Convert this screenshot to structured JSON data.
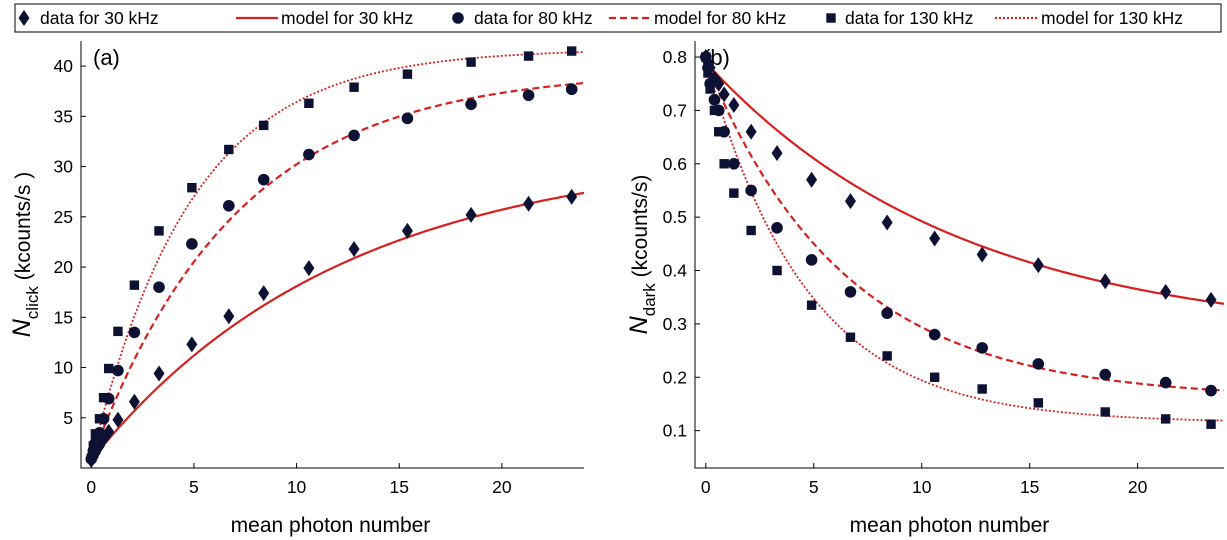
{
  "legend": [
    {
      "label": "data for 30 kHz",
      "kind": "marker",
      "marker": "diamond"
    },
    {
      "label": "model for 30 kHz",
      "kind": "line",
      "dash": "solid"
    },
    {
      "label": "data for 80 kHz",
      "kind": "marker",
      "marker": "circle"
    },
    {
      "label": "model for 80 kHz",
      "kind": "line",
      "dash": "dashed"
    },
    {
      "label": "data for 130 kHz",
      "kind": "marker",
      "marker": "square"
    },
    {
      "label": "model for 130 kHz",
      "kind": "line",
      "dash": "dotted"
    }
  ],
  "colors": {
    "marker": "#0d1133",
    "model": "#d62020",
    "axis": "#000000"
  },
  "chart_data": [
    {
      "type": "scatter",
      "panel_label": "(a)",
      "xlabel": "mean photon number",
      "ylabel_main": "N",
      "ylabel_sub": "click",
      "ylabel_unit": "(kcounts/s )",
      "xlim": [
        -0.5,
        24
      ],
      "ylim": [
        0,
        42.5
      ],
      "xticks": [
        0,
        5,
        10,
        15,
        20
      ],
      "yticks": [
        5,
        10,
        15,
        20,
        25,
        30,
        35,
        40
      ],
      "series": [
        {
          "name": "data for 30 kHz",
          "marker": "diamond",
          "x": [
            0,
            0.1,
            0.2,
            0.4,
            0.6,
            0.85,
            1.3,
            2.1,
            3.3,
            4.9,
            6.7,
            8.4,
            10.6,
            12.8,
            15.4,
            18.5,
            21.3,
            23.4
          ],
          "y": [
            0.8,
            1.1,
            1.5,
            2.2,
            2.9,
            3.6,
            4.8,
            6.6,
            9.4,
            12.3,
            15.1,
            17.4,
            19.9,
            21.8,
            23.6,
            25.2,
            26.3,
            27.0
          ]
        },
        {
          "name": "model for 30 kHz",
          "line": "solid",
          "model": {
            "a": 0.8,
            "b": 30.9,
            "k": 0.082
          }
        },
        {
          "name": "data for 80 kHz",
          "marker": "circle",
          "x": [
            0,
            0.1,
            0.2,
            0.4,
            0.6,
            0.85,
            1.3,
            2.1,
            3.3,
            4.9,
            6.7,
            8.4,
            10.6,
            12.8,
            15.4,
            18.5,
            21.3,
            23.4
          ],
          "y": [
            0.9,
            1.7,
            2.5,
            3.5,
            4.9,
            6.9,
            9.7,
            13.5,
            18.0,
            22.3,
            26.1,
            28.7,
            31.2,
            33.1,
            34.8,
            36.2,
            37.1,
            37.7
          ]
        },
        {
          "name": "model for 80 kHz",
          "line": "dashed",
          "model": {
            "a": 0.8,
            "b": 38.8,
            "k": 0.142
          }
        },
        {
          "name": "data for 130 kHz",
          "marker": "square",
          "x": [
            0,
            0.1,
            0.2,
            0.4,
            0.6,
            0.85,
            1.3,
            2.1,
            3.3,
            4.9,
            6.7,
            8.4,
            10.6,
            12.8,
            15.4,
            18.5,
            21.3,
            23.4
          ],
          "y": [
            1.0,
            2.2,
            3.4,
            4.9,
            7.0,
            9.9,
            13.6,
            18.2,
            23.6,
            27.9,
            31.7,
            34.1,
            36.3,
            37.9,
            39.2,
            40.4,
            41.0,
            41.5
          ]
        },
        {
          "name": "model for 130 kHz",
          "line": "dotted",
          "model": {
            "a": 0.8,
            "b": 40.9,
            "k": 0.205
          }
        }
      ]
    },
    {
      "type": "scatter",
      "panel_label": "(b)",
      "xlabel": "mean photon number",
      "ylabel_main": "N",
      "ylabel_sub": "dark",
      "ylabel_unit": "(kcounts/s)",
      "xlim": [
        -0.5,
        24
      ],
      "ylim": [
        0.03,
        0.83
      ],
      "xticks": [
        0,
        5,
        10,
        15,
        20
      ],
      "yticks": [
        0.1,
        0.2,
        0.3,
        0.4,
        0.5,
        0.6,
        0.7,
        0.8
      ],
      "series": [
        {
          "name": "data for 30 kHz",
          "marker": "diamond",
          "x": [
            0,
            0.1,
            0.2,
            0.4,
            0.6,
            0.85,
            1.3,
            2.1,
            3.3,
            4.9,
            6.7,
            8.4,
            10.6,
            12.8,
            15.4,
            18.5,
            21.3,
            23.4
          ],
          "y": [
            0.8,
            0.79,
            0.78,
            0.76,
            0.75,
            0.73,
            0.71,
            0.66,
            0.62,
            0.57,
            0.53,
            0.49,
            0.46,
            0.43,
            0.41,
            0.38,
            0.36,
            0.345
          ]
        },
        {
          "name": "model for 30 kHz",
          "line": "solid",
          "model": {
            "a": 0.27,
            "b": 0.52,
            "k": 0.085
          }
        },
        {
          "name": "data for 80 kHz",
          "marker": "circle",
          "x": [
            0,
            0.1,
            0.2,
            0.4,
            0.6,
            0.85,
            1.3,
            2.1,
            3.3,
            4.9,
            6.7,
            8.4,
            10.6,
            12.8,
            15.4,
            18.5,
            21.3,
            23.4
          ],
          "y": [
            0.8,
            0.78,
            0.75,
            0.72,
            0.7,
            0.66,
            0.6,
            0.55,
            0.48,
            0.42,
            0.36,
            0.32,
            0.28,
            0.255,
            0.225,
            0.205,
            0.19,
            0.175
          ]
        },
        {
          "name": "model for 80 kHz",
          "line": "dashed",
          "model": {
            "a": 0.16,
            "b": 0.63,
            "k": 0.155
          }
        },
        {
          "name": "data for 130 kHz",
          "marker": "square",
          "x": [
            0,
            0.1,
            0.2,
            0.4,
            0.6,
            0.85,
            1.3,
            2.1,
            3.3,
            4.9,
            6.7,
            8.4,
            10.6,
            12.8,
            15.4,
            18.5,
            21.3,
            23.4
          ],
          "y": [
            0.8,
            0.77,
            0.74,
            0.7,
            0.66,
            0.6,
            0.545,
            0.475,
            0.4,
            0.335,
            0.275,
            0.24,
            0.2,
            0.178,
            0.152,
            0.135,
            0.122,
            0.112
          ]
        },
        {
          "name": "model for 130 kHz",
          "line": "dotted",
          "model": {
            "a": 0.115,
            "b": 0.68,
            "k": 0.215
          }
        }
      ]
    }
  ]
}
